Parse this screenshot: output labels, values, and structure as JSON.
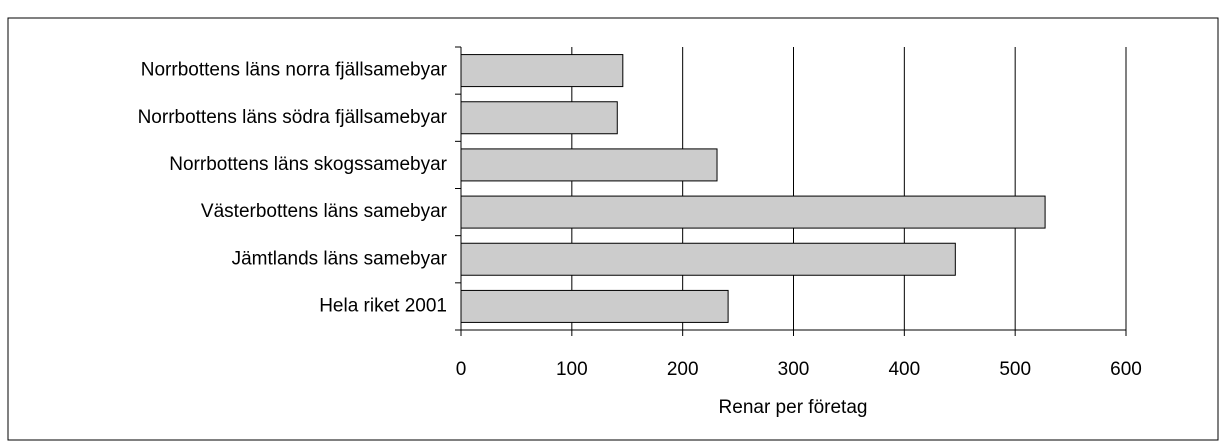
{
  "chart_data": {
    "type": "bar",
    "orientation": "horizontal",
    "categories": [
      "Norrbottens läns norra fjällsamebyar",
      "Norrbottens läns södra fjällsamebyar",
      "Norrbottens läns skogssamebyar",
      "Västerbottens läns samebyar",
      "Jämtlands läns samebyar",
      "Hela riket 2001"
    ],
    "values": [
      146,
      141,
      231,
      527,
      446,
      241
    ],
    "color": "#cccccc",
    "xlabel": "Renar per företag",
    "xlim": [
      0,
      600
    ],
    "xticks": [
      0,
      100,
      200,
      300,
      400,
      500,
      600
    ],
    "grid": true
  }
}
